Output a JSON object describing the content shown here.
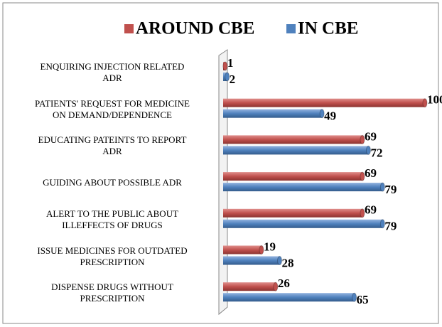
{
  "chart_data": {
    "type": "bar",
    "orientation": "horizontal",
    "categories": [
      "ENQUIRING INJECTION  RELATED\nADR",
      "PATIENTS' REQUEST FOR MEDICINE\nON DEMAND/DEPENDENCE",
      "EDUCATING PATEINTS TO REPORT\nADR",
      "GUIDING ABOUT POSSIBLE ADR",
      "ALERT TO THE PUBLIC ABOUT\nILLEFFECTS OF DRUGS",
      "ISSUE MEDICINES FOR OUTDATED\nPRESCRIPTION",
      "DISPENSE DRUGS WITHOUT\nPRESCRIPTION"
    ],
    "series": [
      {
        "name": "AROUND CBE",
        "color": "#c0504d",
        "values": [
          1,
          100,
          69,
          69,
          69,
          19,
          26
        ]
      },
      {
        "name": "IN CBE",
        "color": "#4f81bd",
        "values": [
          2,
          49,
          72,
          79,
          79,
          28,
          65
        ]
      }
    ],
    "xlim": [
      0,
      100
    ],
    "legend": "top"
  }
}
